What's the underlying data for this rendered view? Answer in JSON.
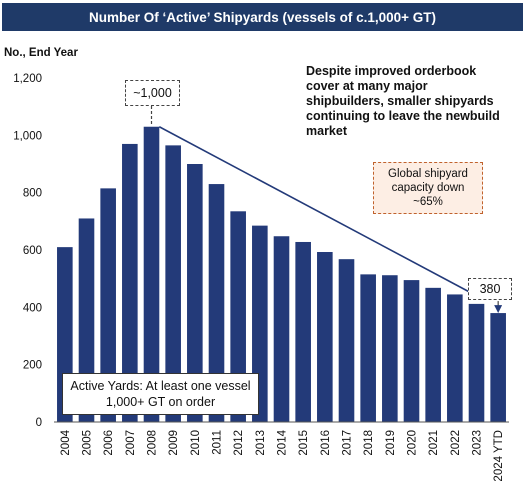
{
  "title": "Number Of ‘Active’ Shipyards (vessels of c.1,000+ GT)",
  "colors": {
    "title_bg": "#1f3a68",
    "bar": "#233a79",
    "arrow": "#233a79",
    "capacity_border": "#c0622d",
    "capacity_bg": "#fdeee4"
  },
  "chart_data": {
    "type": "bar",
    "ylabel": "No., End Year",
    "ylim": [
      0,
      1200
    ],
    "yticks": [
      0,
      200,
      400,
      600,
      800,
      1000,
      1200
    ],
    "ytick_labels": [
      "0",
      "200",
      "400",
      "600",
      "800",
      "1,000",
      "1,200"
    ],
    "grid": false,
    "categories": [
      "2004",
      "2005",
      "2006",
      "2007",
      "2008",
      "2009",
      "2010",
      "2011",
      "2012",
      "2013",
      "2014",
      "2015",
      "2016",
      "2017",
      "2018",
      "2019",
      "2020",
      "2021",
      "2022",
      "2023",
      "2024 YTD"
    ],
    "values": [
      610,
      710,
      815,
      970,
      1030,
      965,
      900,
      830,
      735,
      685,
      648,
      628,
      593,
      568,
      515,
      512,
      495,
      468,
      445,
      412,
      380
    ],
    "annotations": {
      "peak_label": "~1,000",
      "end_label": "380",
      "main_text": "Despite improved orderbook cover at many major shipbuilders, smaller shipyards continuing to leave the newbuild market",
      "capacity_text": "Global shipyard capacity down ~65%",
      "definition_text": "Active Yards: At least one vessel 1,000+ GT on order"
    }
  }
}
